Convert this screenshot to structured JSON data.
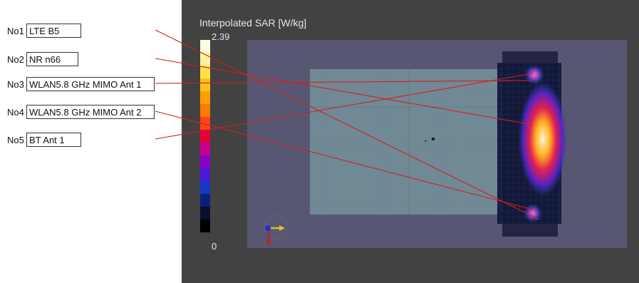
{
  "labels": [
    {
      "id": "No1",
      "text": "LTE B5"
    },
    {
      "id": "No2",
      "text": "NR n66"
    },
    {
      "id": "No3",
      "text": "WLAN5.8 GHz MIMO Ant 1"
    },
    {
      "id": "No4",
      "text": "WLAN5.8 GHz MIMO Ant 2"
    },
    {
      "id": "No5",
      "text": "BT Ant 1"
    }
  ],
  "sar": {
    "title": "Interpolated SAR [W/kg]",
    "max": "2.39",
    "min": "0"
  },
  "colors": {
    "viewport_bg": "#424242",
    "leader_line": "#d02020",
    "colorbar": [
      "#fffbe0",
      "#fff2a0",
      "#ffe04a",
      "#ffc21a",
      "#ffa000",
      "#ff7a00",
      "#ff4418",
      "#e8003a",
      "#c80090",
      "#8a00c8",
      "#4a18d8",
      "#1438c8",
      "#0a2078",
      "#06102e",
      "#000000"
    ]
  }
}
